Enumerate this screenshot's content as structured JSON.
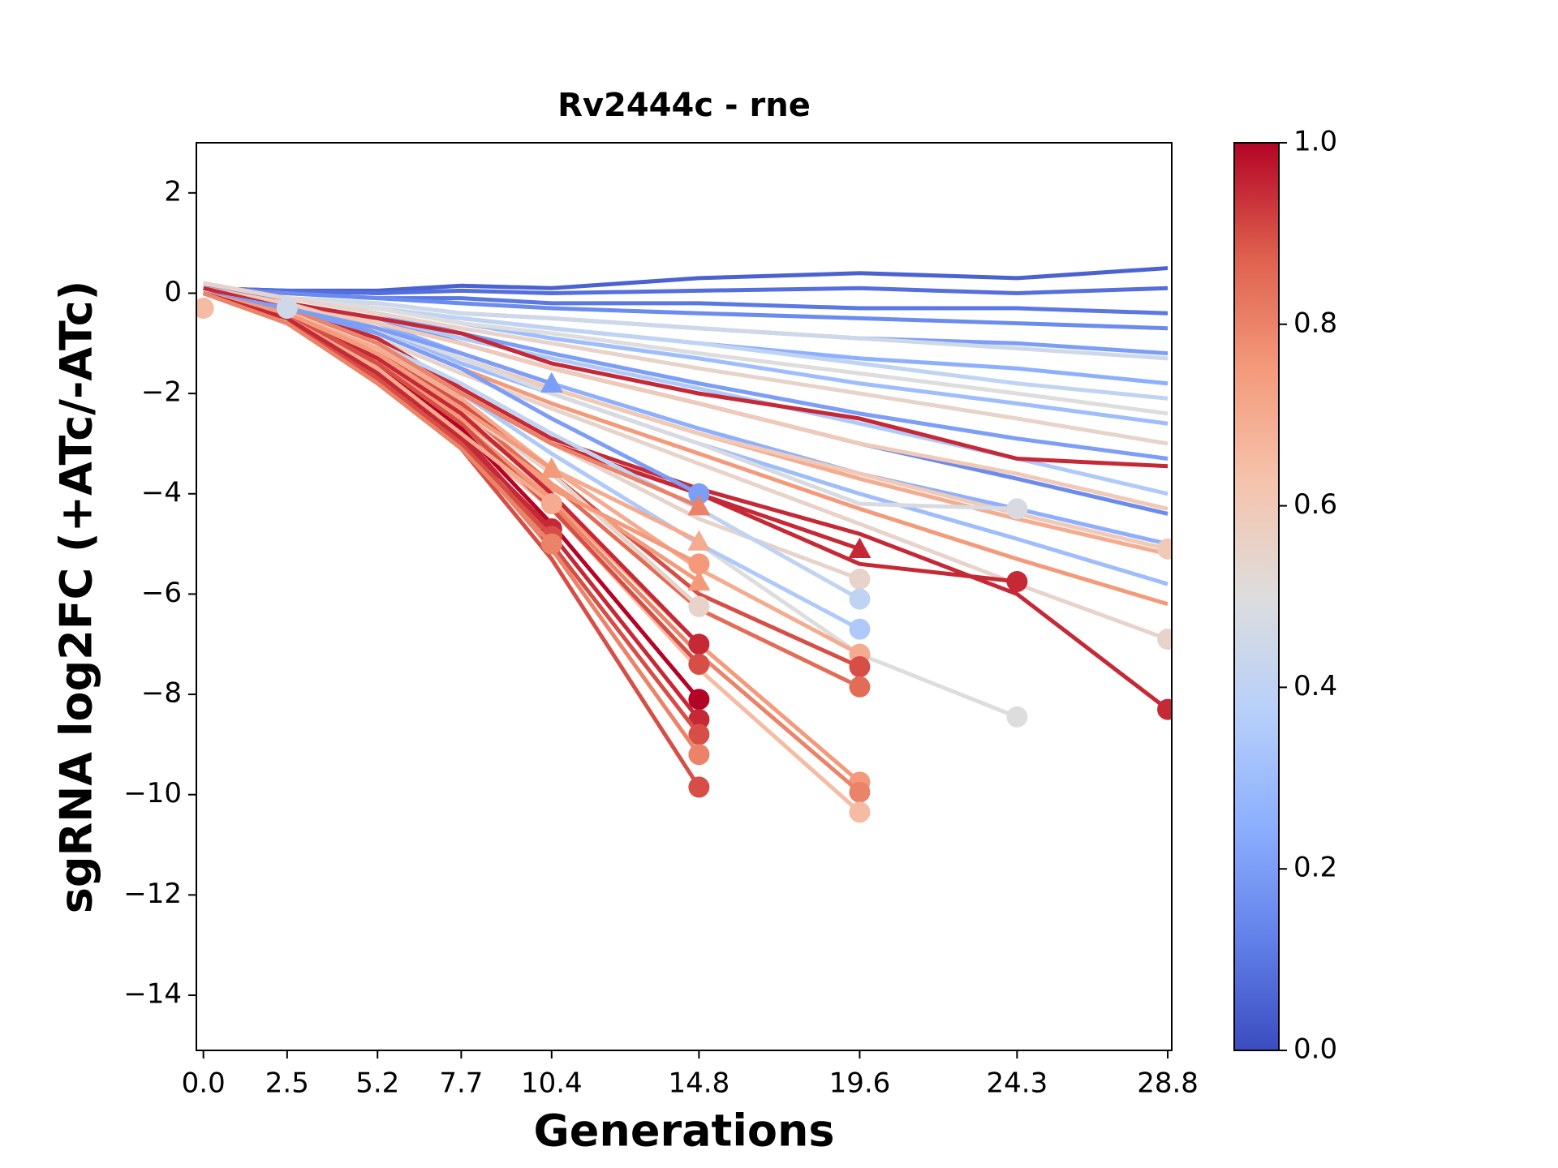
{
  "chart_data": {
    "type": "line",
    "title": "Rv2444c - rne",
    "xlabel": "Generations",
    "ylabel": "sgRNA log2FC (+ATc/-ATc)",
    "x": [
      0,
      2.5,
      5.2,
      7.7,
      10.4,
      14.8,
      19.6,
      24.3,
      28.8
    ],
    "xlim": [
      -0.21,
      28.92
    ],
    "xticks": [
      {
        "value": 0,
        "label": "0.0"
      },
      2.5,
      5.2,
      7.7,
      10.4,
      14.8,
      19.6,
      24.3,
      28.8
    ],
    "ylim": [
      -15.1,
      3
    ],
    "yticks": [
      {
        "value": -14,
        "label": "−14"
      },
      {
        "value": -12,
        "label": "−12"
      },
      {
        "value": -10,
        "label": "−10"
      },
      {
        "value": -8,
        "label": "−8"
      },
      {
        "value": -6,
        "label": "−6"
      },
      {
        "value": -4,
        "label": "−4"
      },
      {
        "value": -2,
        "label": "−2"
      },
      0,
      2
    ],
    "colormap": "coolwarm",
    "clim": [
      0,
      1
    ],
    "cticks": [
      {
        "value": 0,
        "label": "0.0"
      },
      0.2,
      0.4,
      0.6,
      0.8,
      {
        "value": 1,
        "label": "1.0"
      }
    ],
    "series": [
      {
        "colorbar_value": 0.05,
        "values": [
          0.1,
          0.05,
          0.05,
          0.15,
          0.1,
          0.3,
          0.4,
          0.3,
          0.5
        ]
      },
      {
        "colorbar_value": 0.08,
        "values": [
          0.1,
          0.05,
          0,
          0.05,
          0,
          0.05,
          0.1,
          0,
          0.1
        ]
      },
      {
        "colorbar_value": 0.1,
        "values": [
          0.1,
          0,
          -0.1,
          -0.1,
          -0.2,
          -0.2,
          -0.3,
          -0.3,
          -0.4
        ]
      },
      {
        "colorbar_value": 0.15,
        "values": [
          0.1,
          0,
          -0.1,
          -0.2,
          -0.3,
          -0.4,
          -0.5,
          -0.6,
          -0.7
        ]
      },
      {
        "colorbar_value": 0.2,
        "values": [
          0.1,
          -0.1,
          -0.2,
          -0.4,
          -0.5,
          -0.7,
          -0.9,
          -1.0,
          -1.2
        ]
      },
      {
        "colorbar_value": 0.25,
        "values": [
          0.1,
          -0.1,
          -0.3,
          -0.5,
          -0.7,
          -1.0,
          -1.3,
          -1.5,
          -1.8
        ]
      },
      {
        "colorbar_value": 0.3,
        "values": [
          0.1,
          -0.1,
          -0.3,
          -0.6,
          -0.9,
          -1.3,
          -1.8,
          -2.2,
          -2.6
        ]
      },
      {
        "colorbar_value": 0.2,
        "values": [
          0.1,
          -0.1,
          -0.4,
          -0.8,
          -1.2,
          -1.8,
          -2.4,
          -2.9,
          -3.3
        ]
      },
      {
        "colorbar_value": 0.15,
        "values": [
          0.1,
          -0.2,
          -0.5,
          -1.0,
          -1.5,
          -2.2,
          -3.0,
          -3.7,
          -4.4
        ]
      },
      {
        "colorbar_value": 0.25,
        "values": [
          0.1,
          -0.2,
          -0.6,
          -1.2,
          -1.8,
          -2.7,
          -3.6,
          -4.3,
          -5.0
        ]
      },
      {
        "colorbar_value": 0.3,
        "values": [
          0.1,
          -0.2,
          -0.7,
          -1.4,
          -2.0,
          -3.0,
          -4.0,
          -4.9,
          -5.8
        ]
      },
      {
        "colorbar_value": 0.35,
        "values": [
          0.1,
          -0.2,
          -0.5,
          -0.9,
          -1.3,
          -1.9,
          -2.6,
          -3.3,
          -4.0
        ]
      },
      {
        "colorbar_value": 0.4,
        "values": [
          0.2,
          -0.1,
          -0.3,
          -0.5,
          -0.7,
          -1.0,
          -1.4,
          -1.8,
          -2.1
        ]
      },
      {
        "colorbar_value": 0.45,
        "values": [
          0.2,
          -0.1,
          -0.2,
          -0.4,
          -0.5,
          -0.7,
          -0.9,
          -1.1,
          -1.3
        ]
      },
      {
        "colorbar_value": 0.5,
        "values": [
          0.2,
          -0.1,
          -0.3,
          -0.6,
          -0.8,
          -1.2,
          -1.6,
          -2.0,
          -2.4
        ]
      },
      {
        "colorbar_value": 0.55,
        "values": [
          0.2,
          -0.1,
          -0.4,
          -0.7,
          -1.0,
          -1.5,
          -2.0,
          -2.5,
          -3.0
        ]
      },
      {
        "colorbar_value": 0.6,
        "values": [
          0.1,
          -0.2,
          -0.6,
          -1.0,
          -1.5,
          -2.2,
          -3.0,
          -3.6,
          -4.3
        ]
      },
      {
        "colorbar_value": 0.7,
        "values": [
          0.1,
          -0.2,
          -0.7,
          -1.3,
          -1.9,
          -2.8,
          -3.7,
          -4.5,
          -5.2
        ]
      },
      {
        "colorbar_value": 0.75,
        "values": [
          0.1,
          -0.2,
          -0.8,
          -1.5,
          -2.2,
          -3.2,
          -4.3,
          -5.3,
          -6.2
        ]
      },
      {
        "colorbar_value": 0.95,
        "values": [
          0.1,
          -0.2,
          -0.5,
          -0.8,
          -1.4,
          -2.0,
          -2.5,
          -3.3,
          -3.45
        ]
      },
      {
        "colorbar_value": 0.6,
        "marker": "o",
        "values": [
          0.1,
          -0.2,
          -0.7,
          -1.3,
          -1.9,
          -2.8,
          -3.6,
          -4.4,
          -5.1
        ]
      },
      {
        "colorbar_value": 0.55,
        "marker": "o",
        "values": [
          0.1,
          -0.3,
          -0.9,
          -1.6,
          -2.3,
          -3.4,
          -4.6,
          -5.8,
          -6.9
        ]
      },
      {
        "colorbar_value": 0.95,
        "marker": "o",
        "values": [
          0.1,
          -0.3,
          -0.9,
          -1.9,
          -2.9,
          -3.9,
          -4.8,
          -6.0,
          -8.3
        ]
      },
      {
        "colorbar_value": 0.95,
        "marker": "o",
        "values": [
          0,
          -0.3,
          -1.0,
          -2.0,
          -3.0,
          -4.0,
          -5.4,
          -5.75,
          null
        ]
      },
      {
        "colorbar_value": 0.48,
        "marker": "o",
        "values": [
          0,
          -0.3,
          -0.7,
          -1.3,
          -2.0,
          -3.0,
          -4.2,
          -4.3,
          null
        ]
      },
      {
        "colorbar_value": 0.5,
        "marker": "o",
        "values": [
          0,
          -0.3,
          -1.0,
          -2.0,
          -3.2,
          -5.0,
          -7.2,
          -8.45,
          null
        ]
      },
      {
        "colorbar_value": 0.95,
        "marker": "^",
        "values": [
          0,
          -0.3,
          -1.0,
          -2.0,
          -3.0,
          -4.0,
          -5.1,
          null,
          null
        ]
      },
      {
        "colorbar_value": 0.55,
        "marker": "o",
        "values": [
          0,
          -0.3,
          -1.0,
          -2.0,
          -3.0,
          -4.5,
          -5.7,
          null,
          null
        ]
      },
      {
        "colorbar_value": 0.4,
        "marker": "o",
        "values": [
          0,
          -0.3,
          -1.0,
          -1.8,
          -2.8,
          -4.3,
          -6.1,
          null,
          null
        ]
      },
      {
        "colorbar_value": 0.35,
        "marker": "o",
        "values": [
          0,
          -0.3,
          -1.0,
          -2.0,
          -3.2,
          -5.0,
          -6.7,
          null,
          null
        ]
      },
      {
        "colorbar_value": 0.7,
        "marker": "o",
        "values": [
          0,
          -0.4,
          -1.1,
          -2.1,
          -3.5,
          -5.5,
          -7.2,
          null,
          null
        ]
      },
      {
        "colorbar_value": 0.9,
        "marker": "o",
        "values": [
          0,
          -0.4,
          -1.2,
          -2.2,
          -3.6,
          -6.0,
          -7.45,
          null,
          null
        ]
      },
      {
        "colorbar_value": 0.85,
        "marker": "o",
        "values": [
          0,
          -0.4,
          -1.2,
          -2.3,
          -3.8,
          -6.3,
          -7.85,
          null,
          null
        ]
      },
      {
        "colorbar_value": 0.75,
        "marker": "o",
        "values": [
          0,
          -0.5,
          -1.4,
          -2.6,
          -4.1,
          -7.0,
          -9.75,
          null,
          null
        ]
      },
      {
        "colorbar_value": 0.8,
        "marker": "o",
        "values": [
          0,
          -0.5,
          -1.4,
          -2.7,
          -4.2,
          -7.2,
          -9.95,
          null,
          null
        ]
      },
      {
        "colorbar_value": 0.65,
        "marker": "o",
        "values": [
          0,
          -0.5,
          -1.5,
          -2.8,
          -4.3,
          -7.5,
          -10.35,
          null,
          null
        ]
      },
      {
        "colorbar_value": 0.2,
        "marker": "o",
        "values": [
          0,
          -0.3,
          -0.8,
          -1.5,
          -2.5,
          -4.0,
          null,
          null,
          null
        ]
      },
      {
        "colorbar_value": 0.8,
        "marker": "^",
        "values": [
          0,
          -0.3,
          -1.0,
          -2.0,
          -3.0,
          -4.25,
          null,
          null,
          null
        ]
      },
      {
        "colorbar_value": 0.7,
        "marker": "^",
        "values": [
          0,
          -0.4,
          -1.3,
          -2.4,
          -3.5,
          -4.95,
          null,
          null,
          null
        ]
      },
      {
        "colorbar_value": 0.75,
        "marker": "^",
        "values": [
          0,
          -0.4,
          -1.3,
          -2.5,
          -3.8,
          -5.75,
          null,
          null,
          null
        ]
      },
      {
        "colorbar_value": 0.55,
        "marker": "o",
        "values": [
          0,
          -0.4,
          -1.2,
          -2.3,
          -3.6,
          -6.25,
          null,
          null,
          null
        ]
      },
      {
        "colorbar_value": 0.75,
        "marker": "o",
        "values": [
          0,
          -0.4,
          -1.3,
          -2.5,
          -3.9,
          -5.4,
          null,
          null,
          null
        ]
      },
      {
        "colorbar_value": 0.95,
        "marker": "o",
        "values": [
          0,
          -0.4,
          -1.3,
          -2.4,
          -4.0,
          -7.0,
          null,
          null,
          null
        ]
      },
      {
        "colorbar_value": 0.9,
        "marker": "o",
        "values": [
          0,
          -0.4,
          -1.4,
          -2.6,
          -4.3,
          -7.4,
          null,
          null,
          null
        ]
      },
      {
        "colorbar_value": 1.0,
        "marker": "o",
        "values": [
          0,
          -0.5,
          -1.5,
          -2.7,
          -4.6,
          -8.1,
          null,
          null,
          null
        ]
      },
      {
        "colorbar_value": 0.95,
        "marker": "o",
        "values": [
          0,
          -0.5,
          -1.5,
          -2.8,
          -4.8,
          -8.5,
          null,
          null,
          null
        ]
      },
      {
        "colorbar_value": 0.9,
        "marker": "o",
        "values": [
          0,
          -0.5,
          -1.6,
          -2.9,
          -5.0,
          -8.8,
          null,
          null,
          null
        ]
      },
      {
        "colorbar_value": 0.8,
        "marker": "o",
        "values": [
          0,
          -0.5,
          -1.6,
          -3.0,
          -5.1,
          -9.2,
          null,
          null,
          null
        ]
      },
      {
        "colorbar_value": 0.9,
        "marker": "o",
        "values": [
          0,
          -0.5,
          -1.7,
          -3.1,
          -5.3,
          -9.85,
          null,
          null,
          null
        ]
      },
      {
        "colorbar_value": 0.2,
        "marker": "^",
        "values": [
          0,
          -0.3,
          -0.7,
          -1.2,
          -1.8,
          null,
          null,
          null,
          null
        ]
      },
      {
        "colorbar_value": 0.75,
        "marker": "^",
        "values": [
          0,
          -0.4,
          -1.2,
          -2.3,
          -3.5,
          null,
          null,
          null,
          null
        ]
      },
      {
        "colorbar_value": 0.7,
        "marker": "o",
        "values": [
          0,
          -0.5,
          -1.5,
          -2.8,
          -4.2,
          null,
          null,
          null,
          null
        ]
      },
      {
        "colorbar_value": 0.95,
        "marker": "o",
        "values": [
          0,
          -0.5,
          -1.6,
          -2.9,
          -4.7,
          null,
          null,
          null,
          null
        ]
      },
      {
        "colorbar_value": 0.9,
        "marker": "o",
        "values": [
          0,
          -0.6,
          -1.7,
          -3.0,
          -4.85,
          null,
          null,
          null,
          null
        ]
      },
      {
        "colorbar_value": 0.8,
        "marker": "o",
        "values": [
          0,
          -0.6,
          -1.8,
          -3.1,
          -5.0,
          null,
          null,
          null,
          null
        ]
      },
      {
        "colorbar_value": 0.65,
        "marker": "o",
        "values": [
          -0.3,
          null,
          null,
          null,
          null,
          null,
          null,
          null,
          null
        ]
      },
      {
        "colorbar_value": 0.45,
        "marker": "o",
        "values": [
          null,
          -0.3,
          null,
          null,
          null,
          null,
          null,
          null,
          null
        ]
      }
    ]
  }
}
